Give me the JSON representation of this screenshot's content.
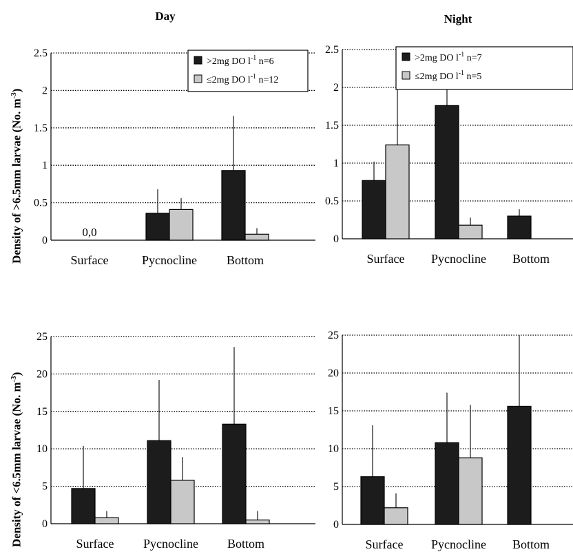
{
  "titles": {
    "day": "Day",
    "night": "Night"
  },
  "ylabels": {
    "top": {
      "text": "Density of >6.5mm larvae (No. m",
      "sup": "-3",
      "close": ")"
    },
    "bottom": {
      "text": "Density of <6.5mm larvae (No. m",
      "sup": "-3",
      "close": ")"
    }
  },
  "colors": {
    "high_do": "#1c1c1c",
    "low_do": "#c8c8c8"
  },
  "chart_data": [
    {
      "type": "bar",
      "title": "Day",
      "ylabel": "Density of >6.5mm larvae (No. m-3)",
      "categories": [
        "Surface",
        "Pycnocline",
        "Bottom"
      ],
      "ylim": [
        0,
        2.5
      ],
      "yticks": [
        0,
        0.5,
        1,
        1.5,
        2,
        2.5
      ],
      "ytick_labels": [
        "0",
        "0.5",
        "1",
        "1.5",
        "2",
        "2.5"
      ],
      "grid": true,
      "legend": "top-right",
      "series": [
        {
          "name": ">2mg DO l",
          "sup": "-1",
          "n_label": "n=6",
          "values": [
            0,
            0.36,
            0.93
          ],
          "errors": [
            0,
            0.32,
            0.73
          ]
        },
        {
          "name": "≤2mg DO l",
          "sup": "-1",
          "n_label": "n=12",
          "values": [
            0,
            0.41,
            0.08
          ],
          "errors": [
            0,
            0.15,
            0.08
          ]
        }
      ],
      "annotations": [
        {
          "text": "0,0",
          "category": "Surface"
        }
      ]
    },
    {
      "type": "bar",
      "title": "Night",
      "ylabel": "",
      "categories": [
        "Surface",
        "Pycnocline",
        "Bottom"
      ],
      "ylim": [
        0,
        2.5
      ],
      "yticks": [
        0,
        0.5,
        1,
        1.5,
        2,
        2.5
      ],
      "ytick_labels": [
        "0",
        "0.5",
        "1",
        "1.5",
        "2",
        "2.5"
      ],
      "grid": true,
      "legend": "top-right",
      "series": [
        {
          "name": ">2mg DO l",
          "sup": "-1",
          "n_label": "n=7",
          "values": [
            0.77,
            1.76,
            0.3
          ],
          "errors": [
            0.25,
            0.75,
            0.09
          ]
        },
        {
          "name": "≤2mg DO l",
          "sup": "-1",
          "n_label": "n=5",
          "values": [
            1.24,
            0.18,
            null
          ],
          "errors": [
            0.98,
            0.1,
            null
          ]
        }
      ]
    },
    {
      "type": "bar",
      "title": "",
      "ylabel": "Density of <6.5mm larvae (No. m-3)",
      "categories": [
        "Surface",
        "Pycnocline",
        "Bottom"
      ],
      "ylim": [
        0,
        25
      ],
      "yticks": [
        0,
        5,
        10,
        15,
        20,
        25
      ],
      "ytick_labels": [
        "0",
        "5",
        "10",
        "15",
        "20",
        "25"
      ],
      "grid": true,
      "series": [
        {
          "name": ">2mg DO l",
          "values": [
            4.7,
            11.1,
            13.3
          ],
          "errors": [
            5.7,
            8.1,
            10.3
          ]
        },
        {
          "name": "≤2mg DO l",
          "values": [
            0.8,
            5.8,
            0.5
          ],
          "errors": [
            0.9,
            3.1,
            1.2
          ]
        }
      ]
    },
    {
      "type": "bar",
      "title": "",
      "ylabel": "",
      "categories": [
        "Surface",
        "Pycnocline",
        "Bottom"
      ],
      "ylim": [
        0,
        25
      ],
      "yticks": [
        0,
        5,
        10,
        15,
        20,
        25
      ],
      "ytick_labels": [
        "0",
        "5",
        "10",
        "15",
        "20",
        "25"
      ],
      "grid": true,
      "series": [
        {
          "name": ">2mg DO l",
          "values": [
            6.3,
            10.8,
            15.6
          ],
          "errors": [
            6.8,
            6.6,
            9.4
          ]
        },
        {
          "name": "≤2mg DO l",
          "values": [
            2.2,
            8.8,
            null
          ],
          "errors": [
            1.9,
            7.0,
            null
          ]
        }
      ]
    }
  ]
}
